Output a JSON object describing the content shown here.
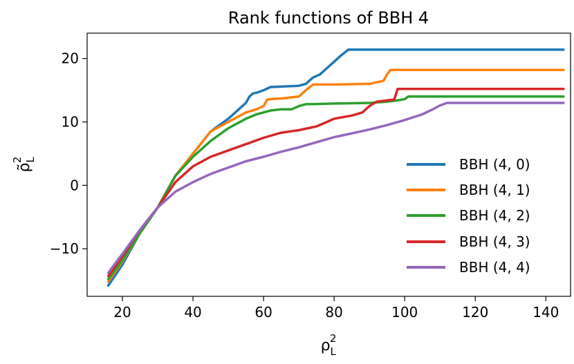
{
  "chart_data": {
    "type": "line",
    "title": "Rank functions of BBH 4",
    "xlabel": {
      "base": "ρ",
      "sub": "L",
      "sup": "2"
    },
    "ylabel": {
      "base": "ρ̃",
      "sub": "L",
      "sup": "2"
    },
    "xlim": [
      10,
      147
    ],
    "ylim": [
      -17.5,
      24
    ],
    "xticks": [
      20,
      40,
      60,
      80,
      100,
      120,
      140
    ],
    "yticks": [
      -10,
      0,
      10,
      20
    ],
    "xtick_labels": [
      "20",
      "40",
      "60",
      "80",
      "100",
      "120",
      "140"
    ],
    "ytick_labels": [
      "−10",
      "0",
      "10",
      "20"
    ],
    "grid": false,
    "legend_position": "lower-right",
    "series": [
      {
        "name": "BBH (4, 0)",
        "color": "#1f77b4",
        "x": [
          16,
          20,
          25,
          30,
          35,
          40,
          45,
          50,
          53,
          55,
          56,
          57,
          58,
          60,
          62,
          66,
          70,
          72,
          74,
          76,
          78,
          80,
          82,
          84,
          90,
          100,
          120,
          145
        ],
        "y": [
          -15.8,
          -12.5,
          -7.5,
          -3.5,
          1.5,
          5,
          8.5,
          10.5,
          12,
          13,
          14,
          14.5,
          14.6,
          15,
          15.5,
          15.6,
          15.7,
          16,
          17,
          17.5,
          18.5,
          19.5,
          20.5,
          21.4,
          21.4,
          21.4,
          21.4,
          21.4
        ]
      },
      {
        "name": "BBH (4, 1)",
        "color": "#ff7f0e",
        "x": [
          16,
          20,
          25,
          30,
          35,
          40,
          45,
          50,
          55,
          58,
          60,
          61,
          62,
          65,
          70,
          72,
          74,
          80,
          90,
          94,
          95,
          96,
          100,
          120,
          145
        ],
        "y": [
          -15.2,
          -12,
          -7.5,
          -3.5,
          1.5,
          5,
          8.5,
          10,
          11.5,
          12,
          12.5,
          13.5,
          13.6,
          13.7,
          14,
          15,
          15.9,
          15.9,
          16,
          16.5,
          17.5,
          18.2,
          18.2,
          18.2,
          18.2
        ]
      },
      {
        "name": "BBH (4, 2)",
        "color": "#2ca02c",
        "x": [
          16,
          20,
          25,
          30,
          35,
          40,
          45,
          50,
          55,
          58,
          60,
          62,
          65,
          68,
          70,
          72,
          74,
          80,
          90,
          95,
          98,
          100,
          101,
          110,
          120,
          145
        ],
        "y": [
          -14.8,
          -11.8,
          -7.5,
          -3.5,
          1.5,
          4.5,
          7,
          9,
          10.5,
          11.2,
          11.5,
          11.8,
          12,
          12,
          12.5,
          12.8,
          12.8,
          12.9,
          13,
          13.2,
          13.4,
          13.6,
          14,
          14,
          14,
          14
        ]
      },
      {
        "name": "BBH (4, 3)",
        "color": "#d62728",
        "x": [
          16,
          20,
          25,
          30,
          35,
          40,
          45,
          50,
          55,
          60,
          65,
          70,
          75,
          78,
          80,
          85,
          88,
          90,
          92,
          95,
          97,
          98,
          100,
          120,
          145
        ],
        "y": [
          -14.3,
          -11.2,
          -7,
          -3.5,
          0.5,
          3,
          4.5,
          5.5,
          6.5,
          7.5,
          8.3,
          8.7,
          9.3,
          10,
          10.5,
          11,
          11.5,
          12.5,
          13.2,
          13.4,
          13.5,
          15.2,
          15.2,
          15.2,
          15.2
        ]
      },
      {
        "name": "BBH (4, 4)",
        "color": "#9467bd",
        "x": [
          16,
          20,
          25,
          30,
          35,
          40,
          45,
          50,
          55,
          60,
          65,
          70,
          75,
          80,
          85,
          90,
          95,
          100,
          105,
          108,
          110,
          112,
          120,
          145
        ],
        "y": [
          -13.8,
          -10.8,
          -7,
          -3.5,
          -1,
          0.5,
          1.8,
          2.8,
          3.8,
          4.5,
          5.3,
          6,
          6.8,
          7.6,
          8.2,
          8.8,
          9.5,
          10.3,
          11.2,
          12,
          12.6,
          13,
          13,
          13
        ]
      }
    ]
  }
}
